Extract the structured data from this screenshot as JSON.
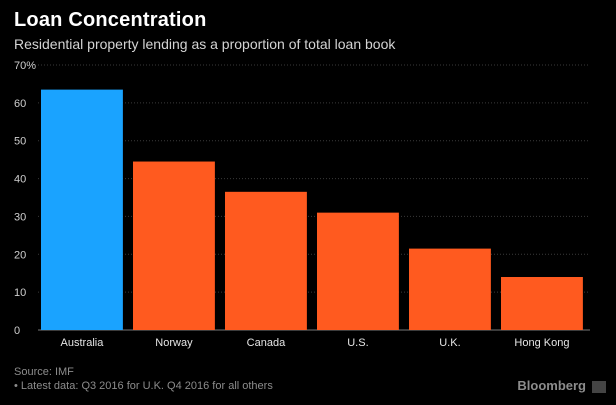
{
  "chart_data": {
    "type": "bar",
    "title": "Loan Concentration",
    "subtitle": "Residential property lending as a proportion of total loan book",
    "categories": [
      "Australia",
      "Norway",
      "Canada",
      "U.S.",
      "U.K.",
      "Hong Kong"
    ],
    "values": [
      63.5,
      44.5,
      36.5,
      31,
      21.5,
      14
    ],
    "colors": [
      "#1aa3ff",
      "#ff5a1f",
      "#ff5a1f",
      "#ff5a1f",
      "#ff5a1f",
      "#ff5a1f"
    ],
    "highlight_color": "#1aa3ff",
    "bar_color": "#ff5a1f",
    "ylim": [
      0,
      70
    ],
    "yticks": [
      "0",
      "10",
      "20",
      "30",
      "40",
      "50",
      "60",
      "70%"
    ],
    "grid": true,
    "legend": "none"
  },
  "footer": {
    "source": "Source: IMF",
    "note": "• Latest data: Q3 2016 for U.K. Q4 2016 for all others"
  },
  "brand": "Bloomberg"
}
